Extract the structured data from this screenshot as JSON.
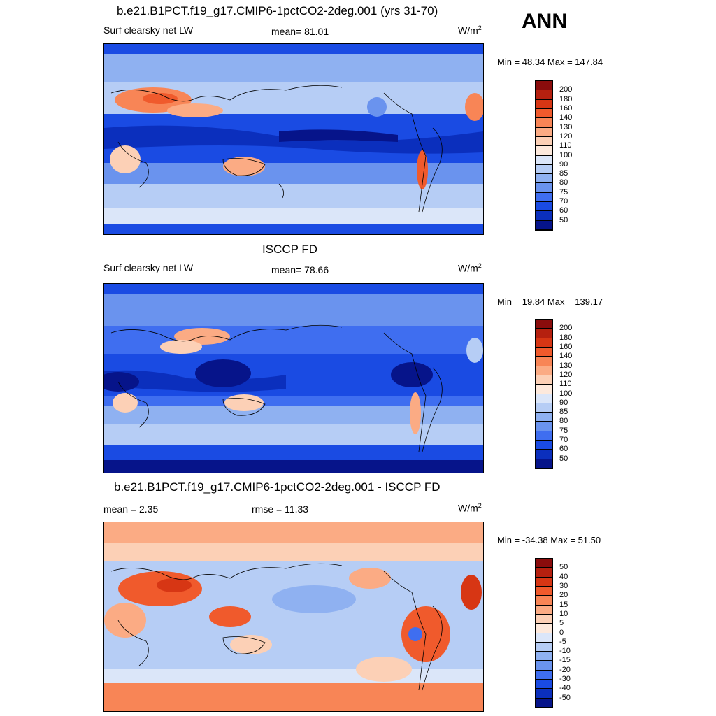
{
  "season": "ANN",
  "panels": [
    {
      "title": "b.e21.B1PCT.f19_g17.CMIP6-1pctCO2-2deg.001 (yrs 31-70)",
      "left_label": "Surf clearsky net LW",
      "center_label": "mean=  81.01",
      "units_base": "W/m",
      "units_sup": "2",
      "minmax": "Min =  48.34 Max = 147.84",
      "colorbar": {
        "labels": [
          "200",
          "180",
          "160",
          "140",
          "130",
          "120",
          "110",
          "100",
          "90",
          "85",
          "80",
          "75",
          "70",
          "60",
          "50"
        ],
        "colors": [
          "#8a0c0c",
          "#b5200f",
          "#d73614",
          "#f05a2c",
          "#f88556",
          "#fbab84",
          "#fcd0b6",
          "#fde9dc",
          "#dbe6f9",
          "#b6cdf5",
          "#8fb1f1",
          "#6a93ee",
          "#3f6ef0",
          "#1a4be3",
          "#0b2fbd",
          "#06148a"
        ]
      }
    },
    {
      "title": "ISCCP FD",
      "left_label": "Surf clearsky net LW",
      "center_label": "mean=  78.66",
      "units_base": "W/m",
      "units_sup": "2",
      "minmax": "Min =  19.84 Max = 139.17",
      "colorbar": {
        "labels": [
          "200",
          "180",
          "160",
          "140",
          "130",
          "120",
          "110",
          "100",
          "90",
          "85",
          "80",
          "75",
          "70",
          "60",
          "50"
        ],
        "colors": [
          "#8a0c0c",
          "#b5200f",
          "#d73614",
          "#f05a2c",
          "#f88556",
          "#fbab84",
          "#fcd0b6",
          "#fde9dc",
          "#dbe6f9",
          "#b6cdf5",
          "#8fb1f1",
          "#6a93ee",
          "#3f6ef0",
          "#1a4be3",
          "#0b2fbd",
          "#06148a"
        ]
      }
    },
    {
      "title": "b.e21.B1PCT.f19_g17.CMIP6-1pctCO2-2deg.001 - ISCCP FD",
      "left_label": "mean =   2.35",
      "center_label": "rmse =  11.33",
      "units_base": "W/m",
      "units_sup": "2",
      "minmax": "Min = -34.38 Max =  51.50",
      "colorbar": {
        "labels": [
          "50",
          "40",
          "30",
          "20",
          "15",
          "10",
          "5",
          "0",
          "-5",
          "-10",
          "-15",
          "-20",
          "-30",
          "-40",
          "-50"
        ],
        "colors": [
          "#8a0c0c",
          "#b5200f",
          "#d73614",
          "#f05a2c",
          "#f88556",
          "#fbab84",
          "#fcd0b6",
          "#fde9dc",
          "#dbe6f9",
          "#b6cdf5",
          "#8fb1f1",
          "#6a93ee",
          "#3f6ef0",
          "#1a4be3",
          "#0b2fbd",
          "#06148a"
        ]
      }
    }
  ]
}
